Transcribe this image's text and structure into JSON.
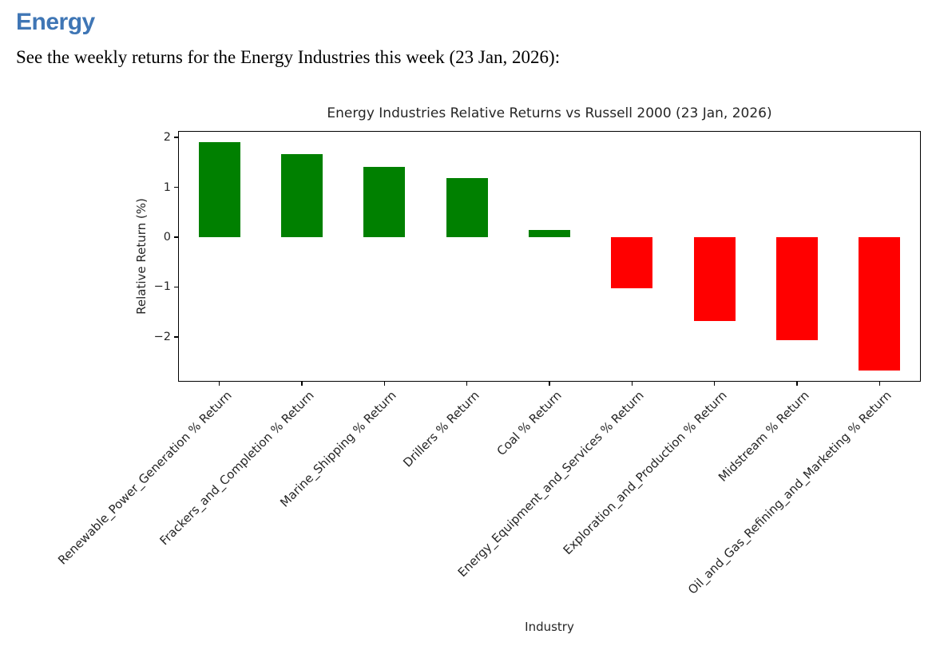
{
  "page": {
    "heading": "Energy",
    "heading_color": "#3f76b5",
    "intro": "See the weekly returns for the Energy Industries this week (23 Jan, 2026):"
  },
  "chart_data": {
    "type": "bar",
    "title": "Energy Industries Relative Returns vs Russell 2000 (23 Jan, 2026)",
    "xlabel": "Industry",
    "ylabel": "Relative Return (%)",
    "categories": [
      "Renewable_Power_Generation % Return",
      "Frackers_and_Completion % Return",
      "Marine_Shipping % Return",
      "Drillers % Return",
      "Coal % Return",
      "Energy_Equipment_and_Services % Return",
      "Exploration_and_Production % Return",
      "Midstream % Return",
      "Oil_and_Gas_Refining_and_Marketing % Return"
    ],
    "values": [
      1.9,
      1.67,
      1.41,
      1.18,
      0.14,
      -1.02,
      -1.68,
      -2.06,
      -2.67
    ],
    "ylim": [
      -2.9,
      2.13
    ],
    "yticks": [
      {
        "label": "2",
        "value": 2
      },
      {
        "label": "1",
        "value": 1
      },
      {
        "label": "0",
        "value": 0
      },
      {
        "label": "−1",
        "value": -1
      },
      {
        "label": "−2",
        "value": -2
      }
    ],
    "grid": false,
    "legend_position": "none",
    "bar_color_positive": "#008000",
    "bar_color_negative": "#ff0000"
  }
}
